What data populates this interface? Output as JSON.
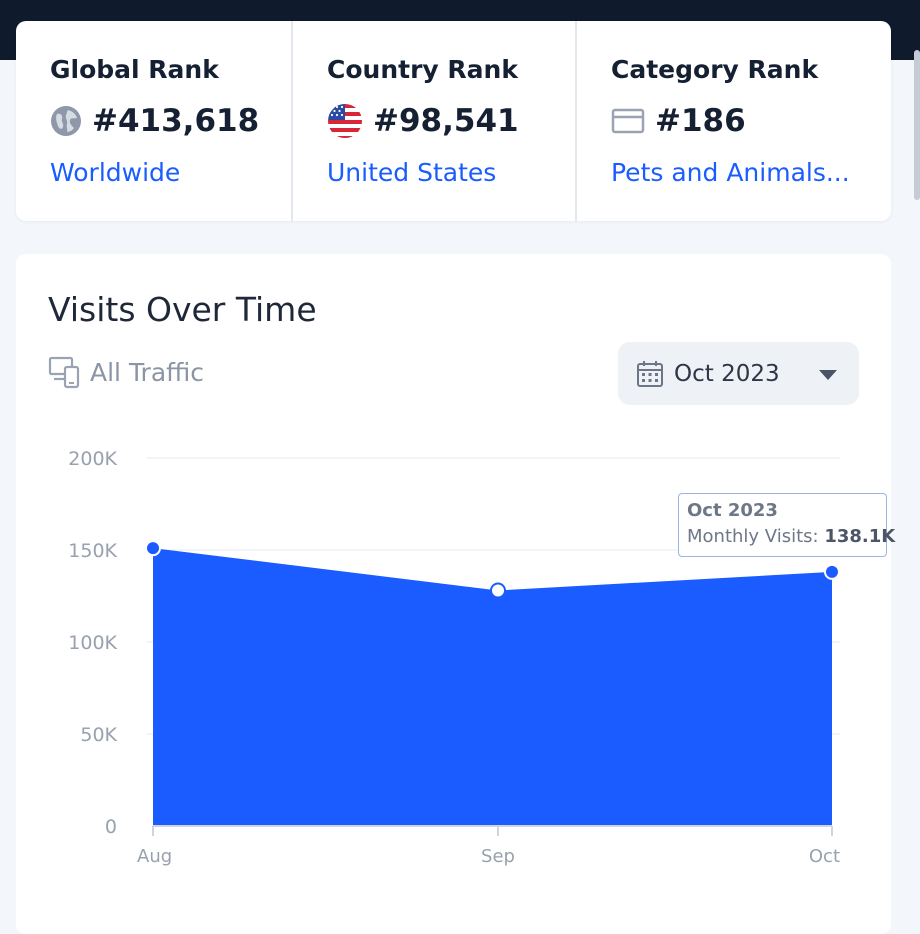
{
  "ranks": [
    {
      "title": "Global Rank",
      "value": "#413,618",
      "link": "Worldwide",
      "icon": "globe-icon"
    },
    {
      "title": "Country Rank",
      "value": "#98,541",
      "link": "United States",
      "icon": "us-flag-icon"
    },
    {
      "title": "Category Rank",
      "value": "#186",
      "link": "Pets and Animals...",
      "icon": "category-icon"
    }
  ],
  "visits": {
    "title": "Visits Over Time",
    "filter_label": "All Traffic",
    "date_label": "Oct 2023",
    "tooltip": {
      "title": "Oct 2023",
      "label": "Monthly Visits:",
      "value": "138.1K"
    }
  },
  "colors": {
    "accent": "#1a5cff",
    "area": "#1a5cff"
  },
  "chart_data": {
    "type": "area",
    "categories": [
      "Aug",
      "Sep",
      "Oct"
    ],
    "values": [
      151000,
      128000,
      138100
    ],
    "ylim": [
      0,
      200000
    ],
    "yticks": [
      0,
      50000,
      100000,
      150000,
      200000
    ],
    "ytick_labels": [
      "0",
      "50K",
      "100K",
      "150K",
      "200K"
    ],
    "grid": true
  }
}
